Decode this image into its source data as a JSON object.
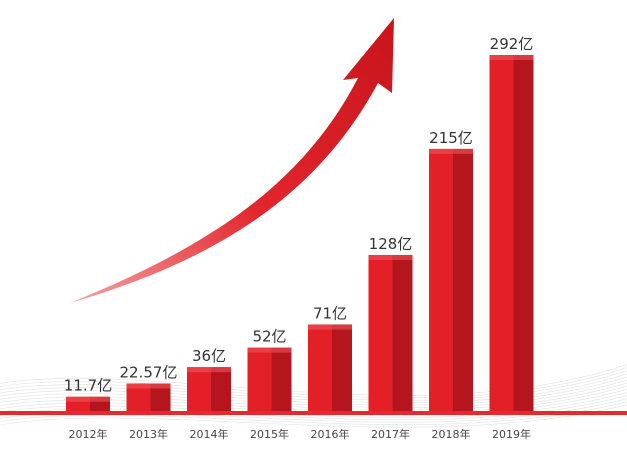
{
  "chart_data": {
    "type": "bar",
    "categories": [
      "2012年",
      "2013年",
      "2014年",
      "2015年",
      "2016年",
      "2017年",
      "2018年",
      "2019年"
    ],
    "values": [
      11.7,
      22.57,
      36,
      52,
      71,
      128,
      215,
      292
    ],
    "data_labels": [
      "11.7亿",
      "22.57亿",
      "36亿",
      "52亿",
      "71亿",
      "128亿",
      "215亿",
      "292亿"
    ],
    "ylim": [
      0,
      292
    ],
    "grid": false,
    "legend": "none",
    "title": "",
    "xlabel": "",
    "ylabel": ""
  },
  "colors": {
    "bar_front": "#e32028",
    "bar_side": "#b5161d",
    "bar_top": "#f25a5f",
    "baseline": "#e52a2f",
    "arrow": "#d71920",
    "arrow_tail": "#f4a3a3",
    "swoosh": "#d9d9d9"
  },
  "decoration": {
    "growth_arrow_icon": "upward-curved-arrow-icon"
  }
}
